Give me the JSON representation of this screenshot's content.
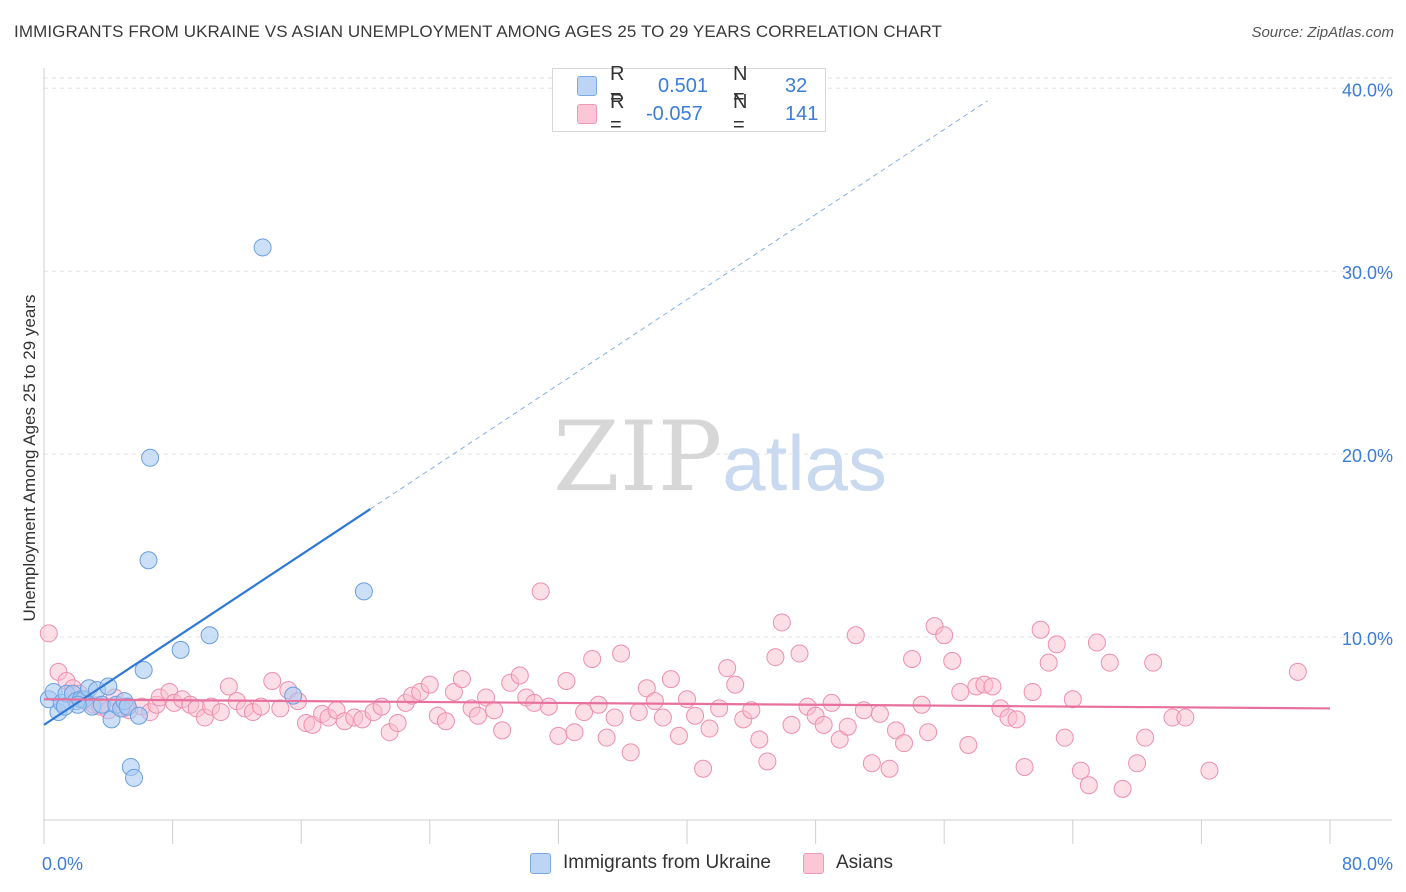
{
  "chart_data": {
    "type": "scatter",
    "title": "IMMIGRANTS FROM UKRAINE VS ASIAN UNEMPLOYMENT AMONG AGES 25 TO 29 YEARS CORRELATION CHART",
    "source": "Source: ZipAtlas.com",
    "xlabel": "",
    "ylabel": "Unemployment Among Ages 25 to 29 years",
    "xlim": [
      0,
      80
    ],
    "ylim": [
      0,
      41
    ],
    "x_tick_labels": [
      "0.0%",
      "80.0%"
    ],
    "y_ticks": [
      10,
      20,
      30,
      40
    ],
    "y_tick_labels": [
      "10.0%",
      "20.0%",
      "30.0%",
      "40.0%"
    ],
    "watermark": "ZIPatlas",
    "legend": {
      "rows": [
        {
          "r_label": "R =",
          "r_value": "0.501",
          "n_label": "N =",
          "n_value": "32"
        },
        {
          "r_label": "R =",
          "r_value": "-0.057",
          "n_label": "N =",
          "n_value": "141"
        }
      ]
    },
    "series": [
      {
        "name": "Immigrants from Ukraine",
        "color": "#a9c9f2",
        "stroke": "#6a9fe0",
        "line_color": "#2e78d6",
        "trend": {
          "x0": 0,
          "y0": 5.2,
          "x1": 20.3,
          "y1": 17.0,
          "dash_to_x": 58.7
        },
        "points": [
          [
            0.3,
            6.6
          ],
          [
            0.6,
            7.0
          ],
          [
            0.9,
            5.9
          ],
          [
            1.1,
            6.4
          ],
          [
            1.4,
            6.9
          ],
          [
            1.8,
            6.9
          ],
          [
            2.0,
            6.5
          ],
          [
            2.3,
            6.6
          ],
          [
            2.5,
            6.6
          ],
          [
            2.8,
            7.2
          ],
          [
            3.0,
            6.2
          ],
          [
            3.3,
            7.1
          ],
          [
            3.6,
            6.3
          ],
          [
            4.0,
            7.3
          ],
          [
            4.2,
            5.5
          ],
          [
            4.5,
            6.3
          ],
          [
            4.8,
            6.1
          ],
          [
            5.0,
            6.5
          ],
          [
            5.2,
            6.2
          ],
          [
            5.4,
            2.9
          ],
          [
            5.6,
            2.3
          ],
          [
            5.9,
            5.7
          ],
          [
            6.2,
            8.2
          ],
          [
            6.5,
            14.2
          ],
          [
            6.6,
            19.8
          ],
          [
            8.5,
            9.3
          ],
          [
            10.3,
            10.1
          ],
          [
            13.6,
            31.3
          ],
          [
            15.5,
            6.8
          ],
          [
            19.9,
            12.5
          ],
          [
            2.1,
            6.3
          ],
          [
            1.3,
            6.2
          ]
        ]
      },
      {
        "name": "Asians",
        "color": "#f9bdd0",
        "stroke": "#ec8fb0",
        "line_color": "#e8709c",
        "trend": {
          "x0": 0,
          "y0": 6.6,
          "x1": 80,
          "y1": 6.1
        },
        "points": [
          [
            0.3,
            10.2
          ],
          [
            0.9,
            8.1
          ],
          [
            1.4,
            7.6
          ],
          [
            1.8,
            7.2
          ],
          [
            2.2,
            6.9
          ],
          [
            2.6,
            6.5
          ],
          [
            3.1,
            6.3
          ],
          [
            3.5,
            6.2
          ],
          [
            4.0,
            6.0
          ],
          [
            4.4,
            6.7
          ],
          [
            4.9,
            6.1
          ],
          [
            5.3,
            6.0
          ],
          [
            6.1,
            6.2
          ],
          [
            6.6,
            5.9
          ],
          [
            7.0,
            6.3
          ],
          [
            7.2,
            6.7
          ],
          [
            7.8,
            7.0
          ],
          [
            8.1,
            6.4
          ],
          [
            8.6,
            6.6
          ],
          [
            9.1,
            6.3
          ],
          [
            9.5,
            6.1
          ],
          [
            10.0,
            5.6
          ],
          [
            10.4,
            6.2
          ],
          [
            11.0,
            5.9
          ],
          [
            11.5,
            7.3
          ],
          [
            12.0,
            6.5
          ],
          [
            12.5,
            6.1
          ],
          [
            13.0,
            5.9
          ],
          [
            13.5,
            6.2
          ],
          [
            14.2,
            7.6
          ],
          [
            14.7,
            6.1
          ],
          [
            15.2,
            7.1
          ],
          [
            15.8,
            6.5
          ],
          [
            16.3,
            5.3
          ],
          [
            16.7,
            5.2
          ],
          [
            17.3,
            5.8
          ],
          [
            17.7,
            5.6
          ],
          [
            18.2,
            6.0
          ],
          [
            18.7,
            5.4
          ],
          [
            19.3,
            5.6
          ],
          [
            19.8,
            5.5
          ],
          [
            20.5,
            5.9
          ],
          [
            21.0,
            6.2
          ],
          [
            21.5,
            4.8
          ],
          [
            22.0,
            5.3
          ],
          [
            22.5,
            6.4
          ],
          [
            22.9,
            6.8
          ],
          [
            23.4,
            7.0
          ],
          [
            24.0,
            7.4
          ],
          [
            24.5,
            5.7
          ],
          [
            25.0,
            5.4
          ],
          [
            25.5,
            7.0
          ],
          [
            26.0,
            7.7
          ],
          [
            26.6,
            6.1
          ],
          [
            27.0,
            5.7
          ],
          [
            27.5,
            6.7
          ],
          [
            28.0,
            6.0
          ],
          [
            28.5,
            4.9
          ],
          [
            29.0,
            7.5
          ],
          [
            29.6,
            7.9
          ],
          [
            30.0,
            6.7
          ],
          [
            30.5,
            6.4
          ],
          [
            30.9,
            12.5
          ],
          [
            31.4,
            6.2
          ],
          [
            32.0,
            4.6
          ],
          [
            32.5,
            7.6
          ],
          [
            33.0,
            4.8
          ],
          [
            33.6,
            5.9
          ],
          [
            34.1,
            8.8
          ],
          [
            34.5,
            6.3
          ],
          [
            35.0,
            4.5
          ],
          [
            35.5,
            5.6
          ],
          [
            35.9,
            9.1
          ],
          [
            36.5,
            3.7
          ],
          [
            37.0,
            5.9
          ],
          [
            37.5,
            7.2
          ],
          [
            38.0,
            6.5
          ],
          [
            38.5,
            5.6
          ],
          [
            39.0,
            7.7
          ],
          [
            39.5,
            4.6
          ],
          [
            40.0,
            6.6
          ],
          [
            40.5,
            5.7
          ],
          [
            41.0,
            2.8
          ],
          [
            41.4,
            5.0
          ],
          [
            42.0,
            6.1
          ],
          [
            42.5,
            8.3
          ],
          [
            43.0,
            7.4
          ],
          [
            43.5,
            5.5
          ],
          [
            44.0,
            6.0
          ],
          [
            44.5,
            4.4
          ],
          [
            45.0,
            3.2
          ],
          [
            45.5,
            8.9
          ],
          [
            45.9,
            10.8
          ],
          [
            46.5,
            5.2
          ],
          [
            47.0,
            9.1
          ],
          [
            47.5,
            6.2
          ],
          [
            48.0,
            5.7
          ],
          [
            48.5,
            5.2
          ],
          [
            49.0,
            6.4
          ],
          [
            49.5,
            4.4
          ],
          [
            50.0,
            5.1
          ],
          [
            50.5,
            10.1
          ],
          [
            51.0,
            6.0
          ],
          [
            51.5,
            3.1
          ],
          [
            52.0,
            5.8
          ],
          [
            52.6,
            2.8
          ],
          [
            53.0,
            4.9
          ],
          [
            53.5,
            4.2
          ],
          [
            54.0,
            8.8
          ],
          [
            54.6,
            6.3
          ],
          [
            55.0,
            4.8
          ],
          [
            55.4,
            10.6
          ],
          [
            56.0,
            10.1
          ],
          [
            56.5,
            8.7
          ],
          [
            57.0,
            7.0
          ],
          [
            57.5,
            4.1
          ],
          [
            58.0,
            7.3
          ],
          [
            58.5,
            7.4
          ],
          [
            59.0,
            7.3
          ],
          [
            59.5,
            6.1
          ],
          [
            60.0,
            5.6
          ],
          [
            60.5,
            5.5
          ],
          [
            61.0,
            2.9
          ],
          [
            61.5,
            7.0
          ],
          [
            62.0,
            10.4
          ],
          [
            62.5,
            8.6
          ],
          [
            63.0,
            9.6
          ],
          [
            63.5,
            4.5
          ],
          [
            64.0,
            6.6
          ],
          [
            64.5,
            2.7
          ],
          [
            65.0,
            1.9
          ],
          [
            65.5,
            9.7
          ],
          [
            66.3,
            8.6
          ],
          [
            67.1,
            1.7
          ],
          [
            68.0,
            3.1
          ],
          [
            68.5,
            4.5
          ],
          [
            69.0,
            8.6
          ],
          [
            70.2,
            5.6
          ],
          [
            71.0,
            5.6
          ],
          [
            72.5,
            2.7
          ],
          [
            78.0,
            8.1
          ]
        ]
      }
    ]
  }
}
